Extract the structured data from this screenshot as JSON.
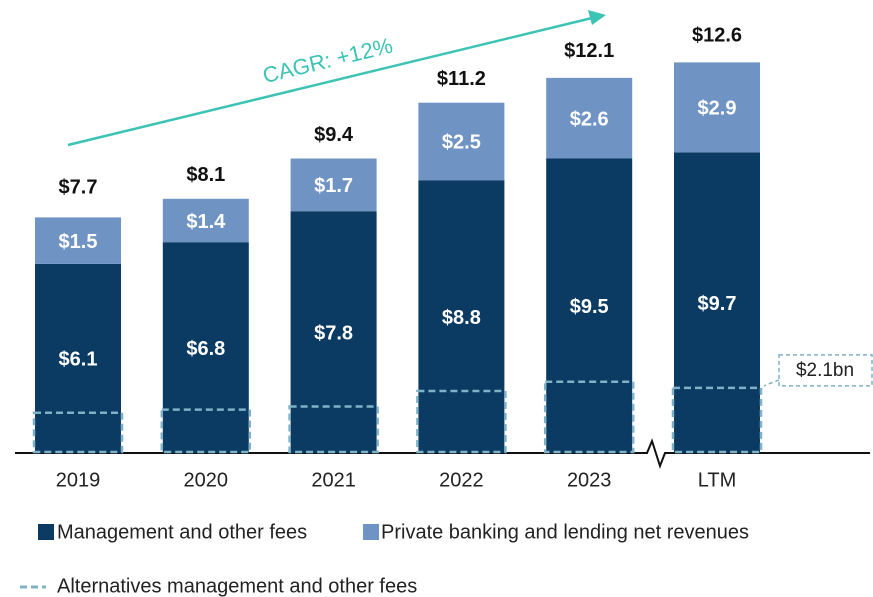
{
  "chart_data": {
    "type": "stacked_bar",
    "categories": [
      "2019",
      "2020",
      "2021",
      "2022",
      "2023",
      "LTM"
    ],
    "series": [
      {
        "name": "Management and other fees",
        "color": "#0b3a62",
        "values": [
          6.1,
          6.8,
          7.8,
          8.8,
          9.5,
          9.7
        ],
        "value_labels": [
          "$6.1",
          "$6.8",
          "$7.8",
          "$8.8",
          "$9.5",
          "$9.7"
        ]
      },
      {
        "name": "Private banking and lending net revenues",
        "color": "#6f94c4",
        "values": [
          1.5,
          1.4,
          1.7,
          2.5,
          2.6,
          2.9
        ],
        "value_labels": [
          "$1.5",
          "$1.4",
          "$1.7",
          "$2.5",
          "$2.6",
          "$2.9"
        ]
      },
      {
        "name": "Alternatives management and other fees",
        "color": "#7fb2c6",
        "style": "dashed",
        "values": [
          1.3,
          1.4,
          1.5,
          2.0,
          2.3,
          2.1
        ],
        "value_labels": [
          null,
          null,
          null,
          null,
          null,
          "$2.1bn"
        ]
      }
    ],
    "totals": {
      "values": [
        7.7,
        8.1,
        9.4,
        11.2,
        12.1,
        12.6
      ],
      "value_labels": [
        "$7.7",
        "$8.1",
        "$9.4",
        "$11.2",
        "$12.1",
        "$12.6"
      ]
    },
    "annotation": {
      "text": "CAGR: +12%",
      "color": "#3cc3b3"
    },
    "legend": "bottom"
  }
}
